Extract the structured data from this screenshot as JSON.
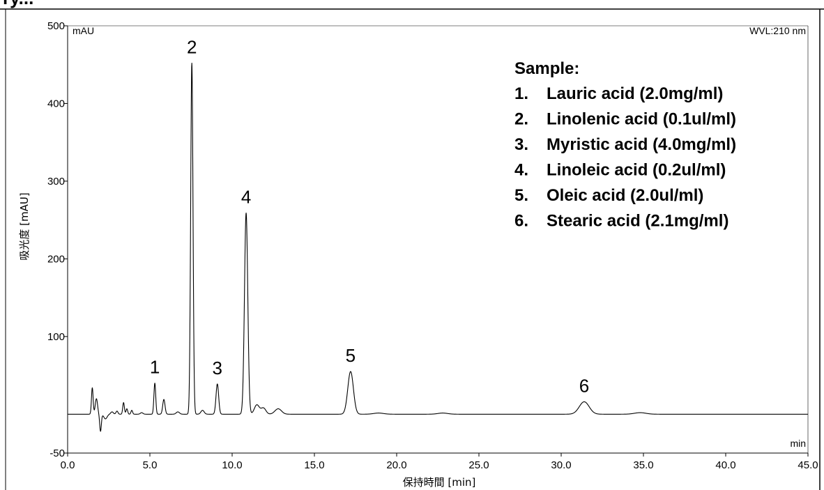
{
  "header_text": "ry...",
  "chart_data": {
    "type": "line",
    "title": "",
    "xlabel": "保持時間 [min]",
    "ylabel": "吸光度 [mAU]",
    "y_unit_corner": "mAU",
    "x_unit_corner": "min",
    "wavelength_label": "WVL:210 nm",
    "xlim": [
      0.0,
      45.0
    ],
    "ylim": [
      -50,
      500
    ],
    "x_ticks": [
      "0.0",
      "5.0",
      "10.0",
      "15.0",
      "20.0",
      "25.0",
      "30.0",
      "35.0",
      "40.0",
      "45.0"
    ],
    "y_ticks": [
      "-50",
      "100",
      "200",
      "300",
      "400",
      "500"
    ],
    "x_tick_values": [
      0,
      5,
      10,
      15,
      20,
      25,
      30,
      35,
      40,
      45
    ],
    "y_tick_values": [
      -50,
      100,
      200,
      300,
      400,
      500
    ],
    "baseline": 0,
    "peaks": [
      {
        "label": "",
        "rt": 1.5,
        "height": 34,
        "width": 0.05
      },
      {
        "label": "",
        "rt": 1.75,
        "height": 20,
        "width": 0.07
      },
      {
        "label": "",
        "rt": 2.0,
        "height": -22,
        "width": 0.05
      },
      {
        "label": "",
        "rt": 2.3,
        "height": -6,
        "width": 0.1
      },
      {
        "label": "",
        "rt": 2.7,
        "height": 3,
        "width": 0.08
      },
      {
        "label": "",
        "rt": 3.0,
        "height": 4,
        "width": 0.06
      },
      {
        "label": "",
        "rt": 3.4,
        "height": 15,
        "width": 0.05
      },
      {
        "label": "",
        "rt": 3.6,
        "height": 7,
        "width": 0.05
      },
      {
        "label": "",
        "rt": 3.9,
        "height": 5,
        "width": 0.05
      },
      {
        "label": "",
        "rt": 4.5,
        "height": 2,
        "width": 0.08
      },
      {
        "label": "1",
        "rt": 5.3,
        "height": 40,
        "width": 0.055
      },
      {
        "label": "",
        "rt": 5.85,
        "height": 19,
        "width": 0.07
      },
      {
        "label": "",
        "rt": 6.7,
        "height": 3,
        "width": 0.1
      },
      {
        "label": "2",
        "rt": 7.55,
        "height": 452,
        "width": 0.07
      },
      {
        "label": "",
        "rt": 8.2,
        "height": 5,
        "width": 0.1
      },
      {
        "label": "3",
        "rt": 9.1,
        "height": 39,
        "width": 0.08
      },
      {
        "label": "4",
        "rt": 10.85,
        "height": 259,
        "width": 0.1
      },
      {
        "label": "",
        "rt": 11.5,
        "height": 12,
        "width": 0.15
      },
      {
        "label": "",
        "rt": 11.9,
        "height": 8,
        "width": 0.15
      },
      {
        "label": "",
        "rt": 12.8,
        "height": 7,
        "width": 0.2
      },
      {
        "label": "5",
        "rt": 17.2,
        "height": 55,
        "width": 0.17
      },
      {
        "label": "",
        "rt": 18.9,
        "height": 1.5,
        "width": 0.3
      },
      {
        "label": "",
        "rt": 22.8,
        "height": 1.5,
        "width": 0.3
      },
      {
        "label": "6",
        "rt": 31.4,
        "height": 16,
        "width": 0.3
      },
      {
        "label": "",
        "rt": 34.8,
        "height": 2,
        "width": 0.35
      }
    ],
    "legend": {
      "title": "Sample:",
      "items": [
        {
          "num": "1.",
          "text": "Lauric acid (2.0mg/ml)"
        },
        {
          "num": "2.",
          "text": "Linolenic acid (0.1ul/ml)"
        },
        {
          "num": "3.",
          "text": "Myristic acid (4.0mg/ml)"
        },
        {
          "num": "4.",
          "text": "Linoleic acid (0.2ul/ml)"
        },
        {
          "num": "5.",
          "text": "Oleic acid (2.0ul/ml)"
        },
        {
          "num": "6.",
          "text": "Stearic acid (2.1mg/ml)"
        }
      ]
    },
    "grid": false,
    "legend_position": "top-right"
  }
}
